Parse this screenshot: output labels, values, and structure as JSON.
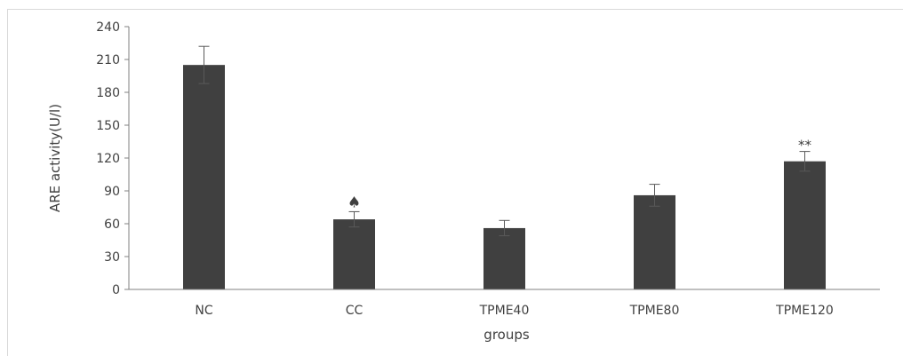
{
  "chart_data": {
    "type": "bar",
    "categories": [
      "NC",
      "CC",
      "TPME40",
      "TPME80",
      "TPME120"
    ],
    "values": [
      205,
      64,
      56,
      86,
      117
    ],
    "error": [
      17,
      7,
      7,
      10,
      9
    ],
    "annotations": [
      "",
      "♠",
      "",
      "",
      "**"
    ],
    "xlabel": "groups",
    "ylabel": "ARE activity(U/l)",
    "ylim": [
      0,
      240
    ],
    "yticks": [
      "0",
      "30",
      "60",
      "90",
      "120",
      "150",
      "180",
      "210",
      "240"
    ],
    "grid": false,
    "bar_color": "#404040",
    "axis_color": "#808080"
  }
}
